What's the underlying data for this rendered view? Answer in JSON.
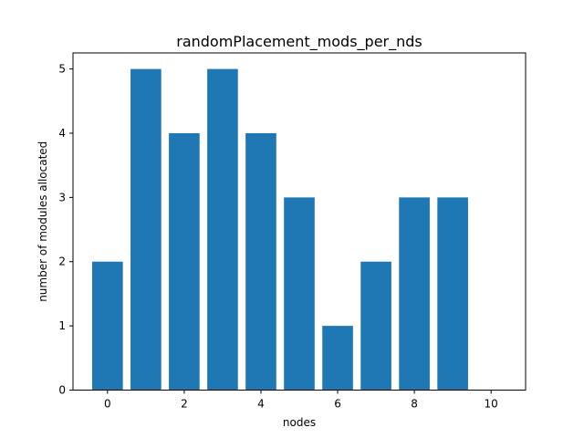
{
  "chart_data": {
    "type": "bar",
    "title": "randomPlacement_mods_per_nds",
    "xlabel": "nodes",
    "ylabel": "number of modules allocated",
    "x": [
      0,
      1,
      2,
      3,
      4,
      5,
      6,
      7,
      8,
      9
    ],
    "values": [
      2,
      5,
      4,
      5,
      4,
      3,
      1,
      2,
      3,
      3
    ],
    "xlim": [
      -0.9,
      10.9
    ],
    "ylim": [
      0,
      5.25
    ],
    "xticks": [
      "0",
      "2",
      "4",
      "6",
      "8",
      "10"
    ],
    "yticks": [
      "0",
      "1",
      "2",
      "3",
      "4",
      "5"
    ],
    "bar_color": "#1f77b4",
    "grid": false,
    "legend": "none"
  }
}
